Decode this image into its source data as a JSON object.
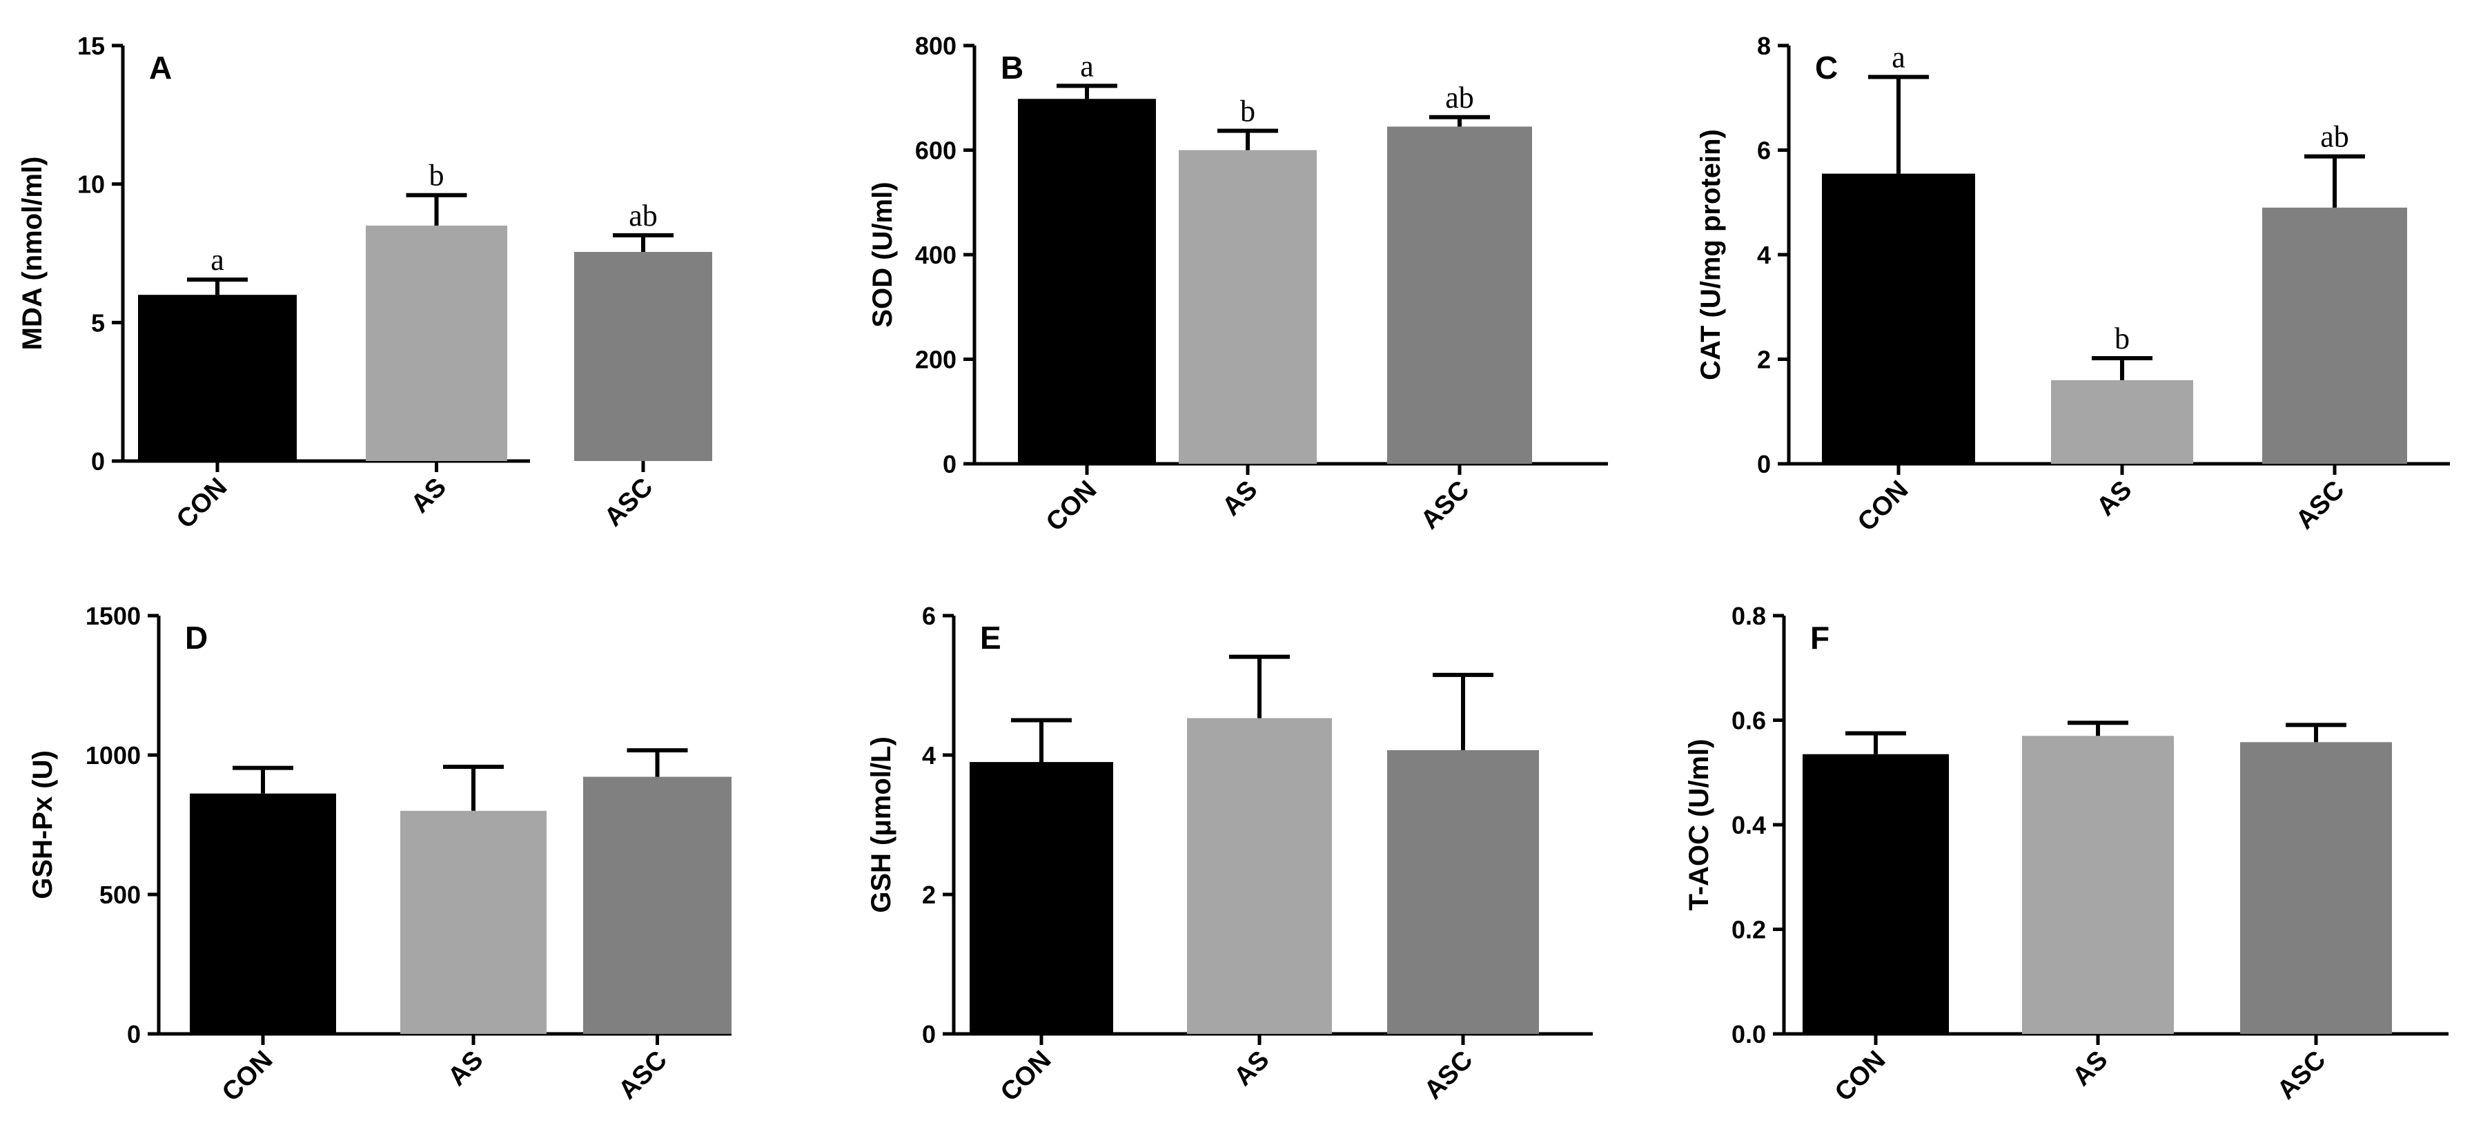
{
  "colors": {
    "CON": "#000000",
    "AS": "#a6a6a6",
    "ASC": "#808080",
    "axis": "#000000"
  },
  "chart_data": [
    {
      "type": "bar",
      "panel": "A",
      "ylabel": "MDA (nmol/ml)",
      "categories": [
        "CON",
        "AS",
        "ASC"
      ],
      "values": [
        6.0,
        8.5,
        7.55
      ],
      "errors": [
        0.55,
        1.1,
        0.6
      ],
      "significance": [
        "a",
        "b",
        "ab"
      ],
      "ylim": [
        0,
        15
      ],
      "yticks": [
        0,
        5,
        10,
        15
      ],
      "ytick_labels": [
        "0",
        "5",
        "10",
        "15"
      ]
    },
    {
      "type": "bar",
      "panel": "B",
      "ylabel": "SOD (U/ml)",
      "categories": [
        "CON",
        "AS",
        "ASC"
      ],
      "values": [
        698,
        600,
        645
      ],
      "errors": [
        25,
        37,
        18
      ],
      "significance": [
        "a",
        "b",
        "ab"
      ],
      "ylim": [
        0,
        800
      ],
      "yticks": [
        0,
        200,
        400,
        600,
        800
      ],
      "ytick_labels": [
        "0",
        "200",
        "400",
        "600",
        "800"
      ]
    },
    {
      "type": "bar",
      "panel": "C",
      "ylabel": "CAT (U/mg protein)",
      "categories": [
        "CON",
        "AS",
        "ASC"
      ],
      "values": [
        5.55,
        1.6,
        4.9
      ],
      "errors": [
        1.85,
        0.42,
        0.98
      ],
      "significance": [
        "a",
        "b",
        "ab"
      ],
      "ylim": [
        0,
        8
      ],
      "yticks": [
        0,
        2,
        4,
        6,
        8
      ],
      "ytick_labels": [
        "0",
        "2",
        "4",
        "6",
        "8"
      ]
    },
    {
      "type": "bar",
      "panel": "D",
      "ylabel": "GSH-Px (U)",
      "categories": [
        "CON",
        "AS",
        "ASC"
      ],
      "values": [
        862,
        800,
        922
      ],
      "errors": [
        92,
        158,
        95
      ],
      "significance": [
        "",
        "",
        ""
      ],
      "ylim": [
        0,
        1500
      ],
      "yticks": [
        0,
        500,
        1000,
        1500
      ],
      "ytick_labels": [
        "0",
        "500",
        "1000",
        "1500"
      ]
    },
    {
      "type": "bar",
      "panel": "E",
      "ylabel": "GSH (μmol/L)",
      "categories": [
        "CON",
        "AS",
        "ASC"
      ],
      "values": [
        3.9,
        4.53,
        4.07
      ],
      "errors": [
        0.6,
        0.88,
        1.08
      ],
      "significance": [
        "",
        "",
        ""
      ],
      "ylim": [
        0,
        6
      ],
      "yticks": [
        0,
        2,
        4,
        6
      ],
      "ytick_labels": [
        "0",
        "2",
        "4",
        "6"
      ]
    },
    {
      "type": "bar",
      "panel": "F",
      "ylabel": "T-AOC (U/ml)",
      "categories": [
        "CON",
        "AS",
        "ASC"
      ],
      "values": [
        0.535,
        0.57,
        0.558
      ],
      "errors": [
        0.04,
        0.025,
        0.033
      ],
      "significance": [
        "",
        "",
        ""
      ],
      "ylim": [
        0,
        0.8
      ],
      "yticks": [
        0,
        0.2,
        0.4,
        0.6,
        0.8
      ],
      "ytick_labels": [
        "0.0",
        "0.2",
        "0.4",
        "0.6",
        "0.8"
      ]
    }
  ]
}
